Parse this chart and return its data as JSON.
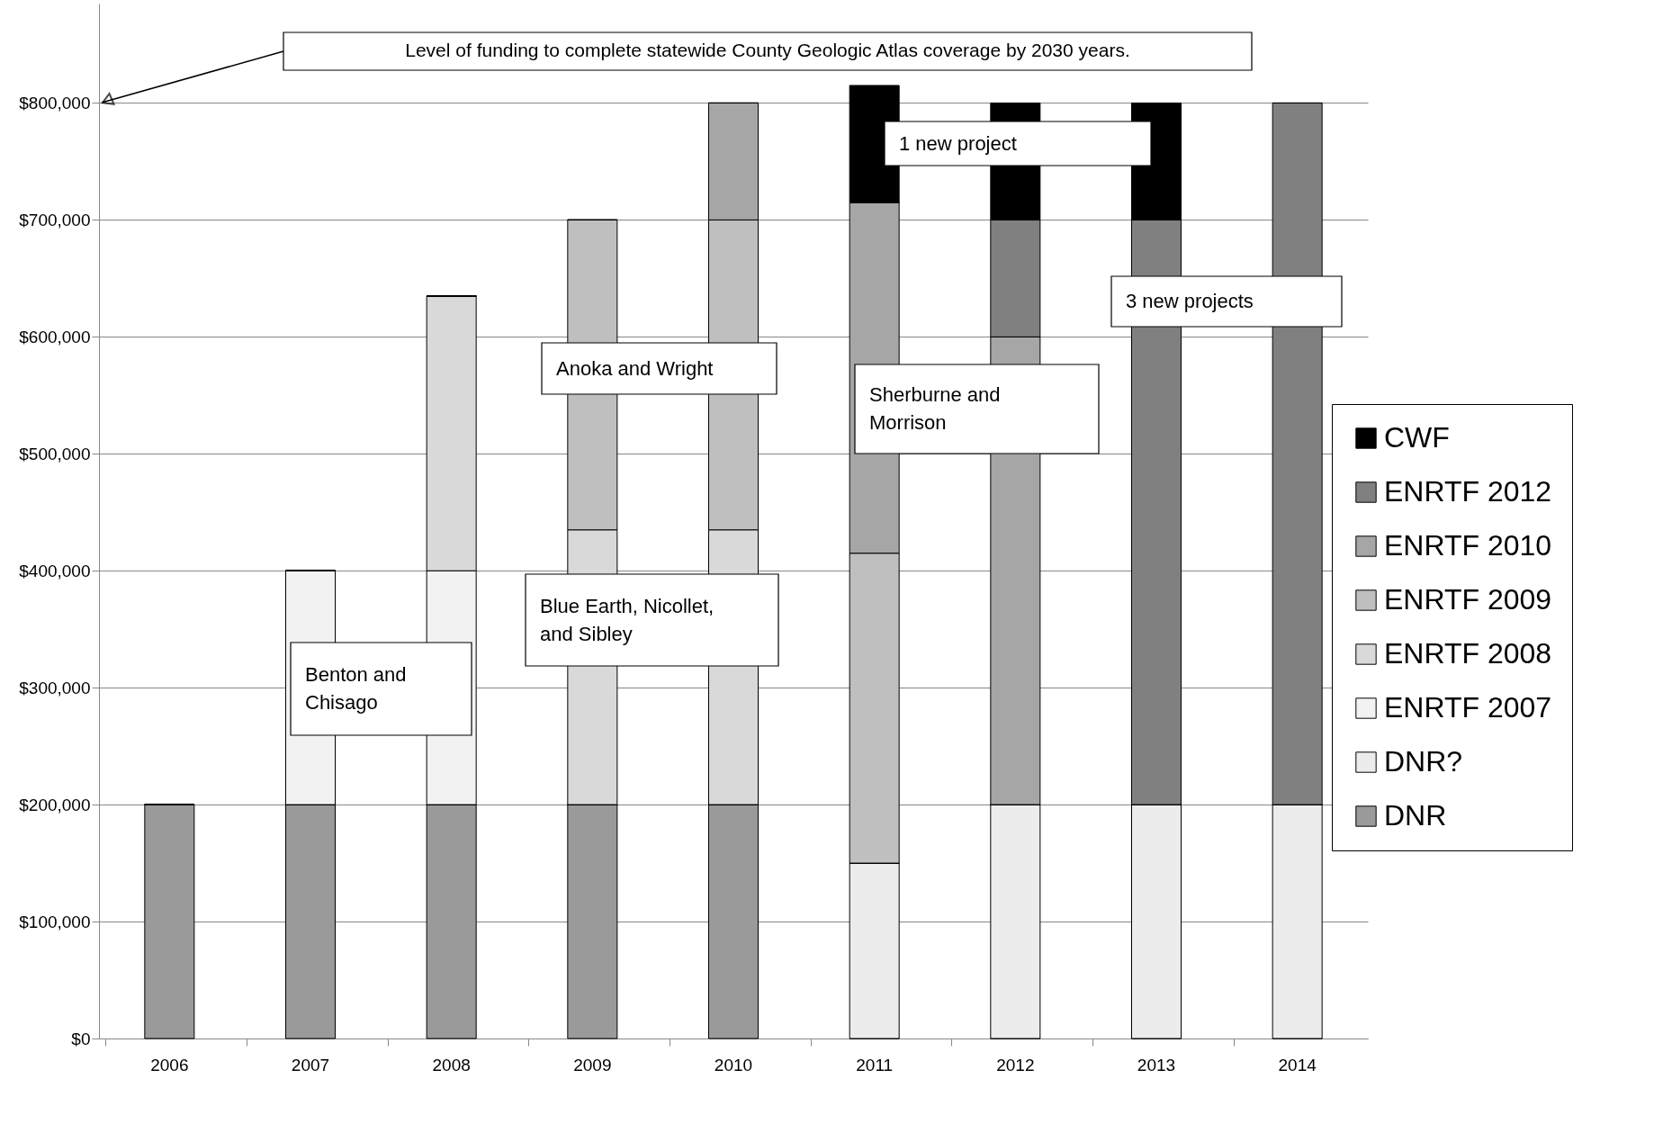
{
  "chart_data": {
    "type": "bar",
    "stacked": true,
    "categories": [
      "2006",
      "2007",
      "2008",
      "2009",
      "2010",
      "2011",
      "2012",
      "2013",
      "2014"
    ],
    "series": [
      {
        "name": "DNR",
        "color": "#9a9a9a",
        "values": [
          200000,
          200000,
          200000,
          200000,
          200000,
          0,
          0,
          0,
          0
        ]
      },
      {
        "name": "DNR?",
        "color": "#ececec",
        "values": [
          0,
          0,
          0,
          0,
          0,
          150000,
          200000,
          200000,
          200000
        ]
      },
      {
        "name": "ENRTF 2007",
        "color": "#f2f2f2",
        "values": [
          0,
          200000,
          200000,
          0,
          0,
          0,
          0,
          0,
          0
        ]
      },
      {
        "name": "ENRTF 2008",
        "color": "#d9d9d9",
        "values": [
          0,
          0,
          235000,
          235000,
          235000,
          0,
          0,
          0,
          0
        ]
      },
      {
        "name": "ENRTF 2009",
        "color": "#bfbfbf",
        "values": [
          0,
          0,
          0,
          265000,
          265000,
          265000,
          0,
          0,
          0
        ]
      },
      {
        "name": "ENRTF 2010",
        "color": "#a6a6a6",
        "values": [
          0,
          0,
          0,
          0,
          100000,
          300000,
          400000,
          0,
          0
        ]
      },
      {
        "name": "ENRTF 2012",
        "color": "#808080",
        "values": [
          0,
          0,
          0,
          0,
          0,
          0,
          100000,
          500000,
          600000
        ]
      },
      {
        "name": "CWF",
        "color": "#000000",
        "values": [
          0,
          0,
          0,
          0,
          0,
          100000,
          100000,
          100000,
          0
        ]
      }
    ],
    "ylim": [
      0,
      885000
    ],
    "yticks": [
      {
        "value": 0,
        "label": "$0"
      },
      {
        "value": 100000,
        "label": "$100,000"
      },
      {
        "value": 200000,
        "label": "$200,000"
      },
      {
        "value": 300000,
        "label": "$300,000"
      },
      {
        "value": 400000,
        "label": "$400,000"
      },
      {
        "value": 500000,
        "label": "$500,000"
      },
      {
        "value": 600000,
        "label": "$600,000"
      },
      {
        "value": 700000,
        "label": "$700,000"
      },
      {
        "value": 800000,
        "label": "$800,000"
      }
    ],
    "grid": "y",
    "legend": "right",
    "annotations": [
      "Level of funding to complete statewide County Geologic Atlas coverage by 2030 years.",
      "1 new project",
      "3 new projects",
      "Anoka and Wright",
      "Sherburne and Morrison",
      "Blue Earth, Nicollet, and Sibley",
      "Benton and Chisago"
    ]
  }
}
